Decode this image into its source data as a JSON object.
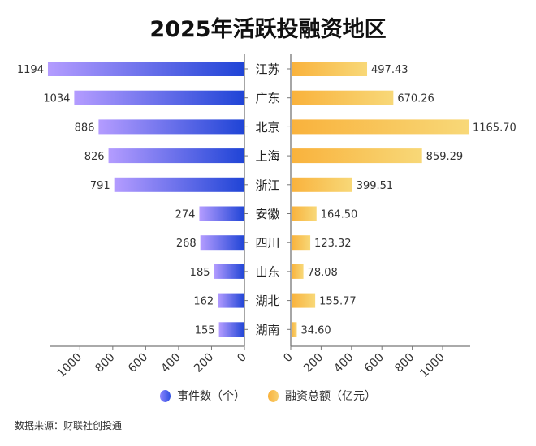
{
  "chart_data": {
    "type": "bar",
    "orientation": "horizontal-butterfly",
    "title": "2025年活跃投融资地区",
    "categories": [
      "江苏",
      "广东",
      "北京",
      "上海",
      "浙江",
      "安徽",
      "四川",
      "山东",
      "湖北",
      "湖南"
    ],
    "series": [
      {
        "name": "事件数（个）",
        "side": "left",
        "values": [
          1194,
          1034,
          886,
          826,
          791,
          274,
          268,
          185,
          162,
          155
        ],
        "labels": [
          "1194",
          "1034",
          "886",
          "826",
          "791",
          "274",
          "268",
          "185",
          "162",
          "155"
        ],
        "color_from": "#b49cff",
        "color_to": "#1f44d6"
      },
      {
        "name": "融资总额（亿元）",
        "side": "right",
        "values": [
          497.43,
          670.26,
          1165.7,
          859.29,
          399.51,
          164.5,
          123.32,
          78.08,
          155.77,
          34.6
        ],
        "labels": [
          "497.43",
          "670.26",
          "1165.70",
          "859.29",
          "399.51",
          "164.50",
          "123.32",
          "78.08",
          "155.77",
          "34.60"
        ],
        "color_from": "#f9b23c",
        "color_to": "#f8d878"
      }
    ],
    "left_axis": {
      "ticks": [
        "0",
        "200",
        "400",
        "600",
        "800",
        "1000"
      ],
      "range": [
        0,
        1194
      ]
    },
    "right_axis": {
      "ticks": [
        "0",
        "200",
        "400",
        "600",
        "800",
        "1000"
      ],
      "range": [
        0,
        1165.7
      ]
    },
    "legend_position": "bottom",
    "grid": false
  },
  "source": "数据来源：财联社创投通"
}
